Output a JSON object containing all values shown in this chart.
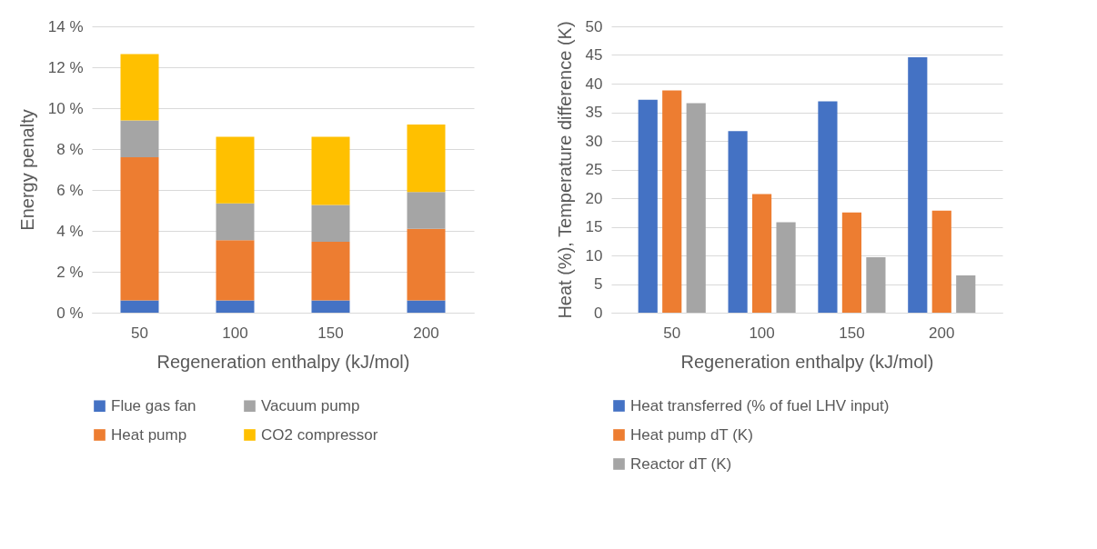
{
  "chart_data": [
    {
      "type": "bar",
      "stacked": true,
      "categories": [
        "50",
        "100",
        "150",
        "200"
      ],
      "xlabel": "Regeneration enthalpy (kJ/mol)",
      "ylabel": "Energy penalty",
      "ylim": [
        0,
        14
      ],
      "yticks": [
        {
          "value": 0,
          "label": "0 %"
        },
        {
          "value": 2,
          "label": "2 %"
        },
        {
          "value": 4,
          "label": "4 %"
        },
        {
          "value": 6,
          "label": "6 %"
        },
        {
          "value": 8,
          "label": "8 %"
        },
        {
          "value": 10,
          "label": "10 %"
        },
        {
          "value": 12,
          "label": "12 %"
        },
        {
          "value": 14,
          "label": "14 %"
        }
      ],
      "grid": "y",
      "legend": "bottom",
      "series": [
        {
          "name": "Flue gas fan",
          "color": "#4472c4",
          "values": [
            0.6,
            0.6,
            0.6,
            0.6
          ]
        },
        {
          "name": "Heat pump",
          "color": "#ed7d31",
          "values": [
            7.0,
            2.95,
            2.87,
            3.5
          ]
        },
        {
          "name": "Vacuum pump",
          "color": "#a5a5a5",
          "values": [
            1.8,
            1.8,
            1.8,
            1.8
          ]
        },
        {
          "name": "CO2 compressor",
          "color": "#ffc000",
          "values": [
            3.25,
            3.25,
            3.33,
            3.3
          ]
        }
      ]
    },
    {
      "type": "bar",
      "categories": [
        "50",
        "100",
        "150",
        "200"
      ],
      "xlabel": "Regeneration enthalpy (kJ/mol)",
      "ylabel": "Heat (%), Temperature difference (K)",
      "ylim": [
        0,
        50
      ],
      "yticks": [
        0,
        5,
        10,
        15,
        20,
        25,
        30,
        35,
        40,
        45,
        50
      ],
      "grid": "y",
      "legend": "bottom",
      "series": [
        {
          "name": "Heat transferred (% of fuel LHV input)",
          "color": "#4472c4",
          "values": [
            37.2,
            31.7,
            36.9,
            44.6
          ]
        },
        {
          "name": "Heat pump dT (K)",
          "color": "#ed7d31",
          "values": [
            38.8,
            20.7,
            17.5,
            17.8
          ]
        },
        {
          "name": "Reactor dT (K)",
          "color": "#a5a5a5",
          "values": [
            36.6,
            15.8,
            9.7,
            6.5
          ]
        }
      ]
    }
  ]
}
